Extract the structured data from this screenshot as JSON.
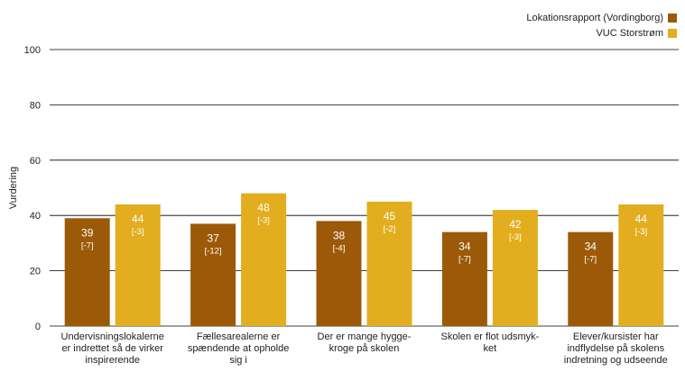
{
  "chart_data": {
    "type": "bar",
    "ylabel": "Vurdering",
    "ylim": [
      0,
      100
    ],
    "yticks": [
      0,
      20,
      40,
      60,
      80,
      100
    ],
    "categories": [
      [
        "Undervisningslokalerne",
        "er indrettet så de virker",
        "inspirerende"
      ],
      [
        "Fællesarealerne er",
        "spændende at opholde",
        "sig i"
      ],
      [
        "Der er mange hygge-",
        "kroge på skolen"
      ],
      [
        "Skolen er flot udsmyk-",
        "ket"
      ],
      [
        "Elever/kursister har",
        "indflydelse på skolens",
        "indretning og udseende"
      ]
    ],
    "series": [
      {
        "name": "Lokationsrapport (Vordingborg)",
        "color": "#9c5a08",
        "values": [
          39,
          37,
          38,
          34,
          34
        ],
        "deltas": [
          "[-7]",
          "[-12]",
          "[-4]",
          "[-7]",
          "[-7]"
        ]
      },
      {
        "name": "VUC Storstrøm",
        "color": "#e2ae1f",
        "values": [
          44,
          48,
          45,
          42,
          44
        ],
        "deltas": [
          "[-3]",
          "[-3]",
          "[-2]",
          "[-3]",
          "[-3]"
        ]
      }
    ],
    "grid": true,
    "legend_position": "top-right"
  }
}
